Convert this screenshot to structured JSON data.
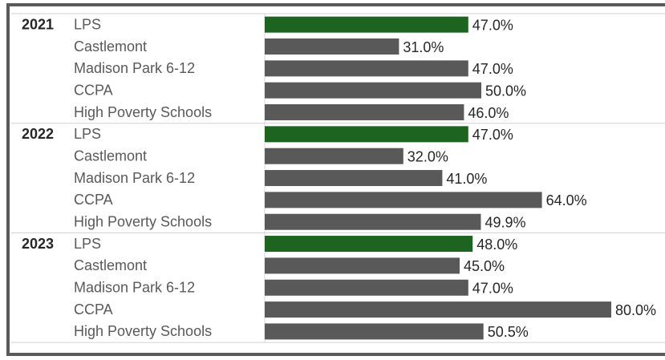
{
  "chart_data": {
    "type": "grouped-hbar",
    "xlim": [
      0,
      80
    ],
    "bar_colors": [
      "#1e6421",
      "#595959",
      "#595959",
      "#595959",
      "#595959"
    ],
    "groups": [
      {
        "name": "2021",
        "categories": [
          "LPS",
          "Castlemont",
          "Madison Park 6-12",
          "CCPA",
          "High Poverty Schools"
        ],
        "values": [
          47.0,
          31.0,
          47.0,
          50.0,
          46.0
        ],
        "value_labels": [
          "47.0%",
          "31.0%",
          "47.0%",
          "50.0%",
          "46.0%"
        ]
      },
      {
        "name": "2022",
        "categories": [
          "LPS",
          "Castlemont",
          "Madison Park 6-12",
          "CCPA",
          "High Poverty Schools"
        ],
        "values": [
          47.0,
          32.0,
          41.0,
          64.0,
          49.9
        ],
        "value_labels": [
          "47.0%",
          "32.0%",
          "41.0%",
          "64.0%",
          "49.9%"
        ]
      },
      {
        "name": "2023",
        "categories": [
          "LPS",
          "Castlemont",
          "Madison Park 6-12",
          "CCPA",
          "High Poverty Schools"
        ],
        "values": [
          48.0,
          45.0,
          47.0,
          80.0,
          50.5
        ],
        "value_labels": [
          "48.0%",
          "45.0%",
          "47.0%",
          "80.0%",
          "50.5%"
        ]
      }
    ]
  }
}
